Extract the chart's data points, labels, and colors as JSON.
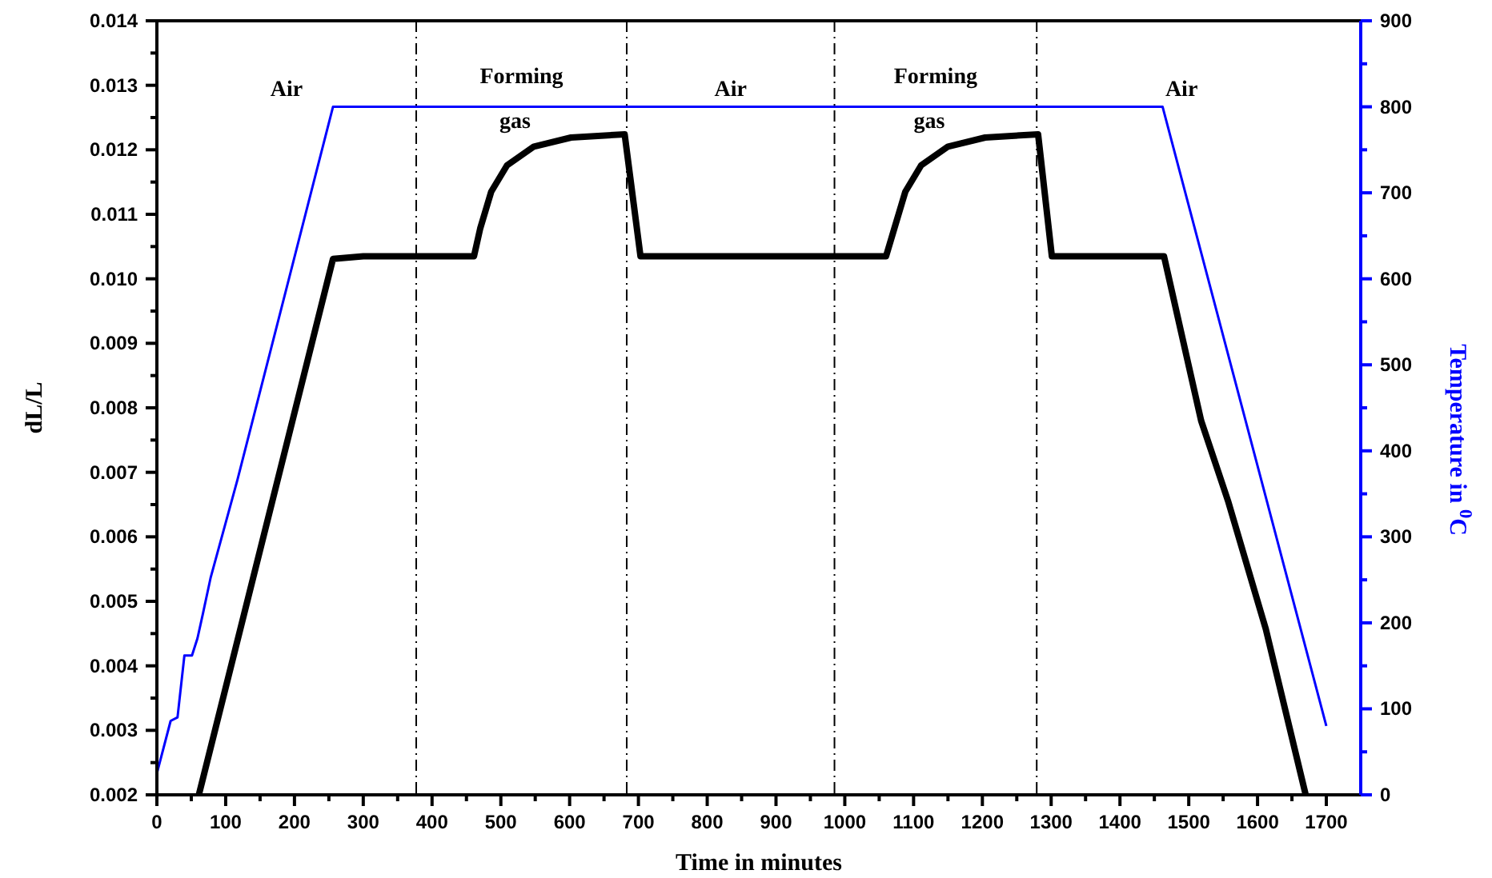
{
  "chart_data": {
    "type": "line",
    "xlabel": "Time in minutes",
    "ylabel": "dL/L",
    "y2label": "Temperature in $^{0}$C",
    "xlim": [
      0,
      1750
    ],
    "xticks": [
      0,
      {
        "value": 50,
        "label": null
      },
      100,
      {
        "value": 150,
        "label": null
      },
      200,
      {
        "value": 250,
        "label": null
      },
      300,
      {
        "value": 350,
        "label": null
      },
      400,
      {
        "value": 450,
        "label": null
      },
      500,
      {
        "value": 550,
        "label": null
      },
      600,
      {
        "value": 650,
        "label": null
      },
      700,
      {
        "value": 750,
        "label": null
      },
      800,
      {
        "value": 850,
        "label": null
      },
      900,
      {
        "value": 950,
        "label": null
      },
      1000,
      {
        "value": 1050,
        "label": null
      },
      1100,
      {
        "value": 1150,
        "label": null
      },
      1200,
      {
        "value": 1250,
        "label": null
      },
      1300,
      {
        "value": 1350,
        "label": null
      },
      1400,
      {
        "value": 1450,
        "label": null
      },
      1500,
      {
        "value": 1550,
        "label": null
      },
      1600,
      {
        "value": 1650,
        "label": null
      },
      1700
    ],
    "ylim": [
      0.002,
      0.014
    ],
    "yticks": [
      0.002,
      {
        "value": 0.0025,
        "label": null
      },
      0.003,
      {
        "value": 0.0035,
        "label": null
      },
      0.004,
      {
        "value": 0.0045,
        "label": null
      },
      0.005,
      {
        "value": 0.0055,
        "label": null
      },
      0.006,
      {
        "value": 0.0065,
        "label": null
      },
      0.007,
      {
        "value": 0.0075,
        "label": null
      },
      0.008,
      {
        "value": 0.0085,
        "label": null
      },
      0.009,
      {
        "value": 0.0095,
        "label": null
      },
      {
        "value": 0.01,
        "label": "0.010"
      },
      {
        "value": 0.0105,
        "label": null
      },
      0.011,
      {
        "value": 0.0115,
        "label": null
      },
      0.012,
      {
        "value": 0.0125,
        "label": null
      },
      0.013,
      {
        "value": 0.0135,
        "label": null
      },
      0.014
    ],
    "y2lim": [
      0,
      900
    ],
    "y2ticks": [
      0,
      {
        "value": 50,
        "label": null
      },
      100,
      {
        "value": 150,
        "label": null
      },
      200,
      {
        "value": 250,
        "label": null
      },
      300,
      {
        "value": 350,
        "label": null
      },
      400,
      {
        "value": 450,
        "label": null
      },
      500,
      {
        "value": 550,
        "label": null
      },
      600,
      {
        "value": 650,
        "label": null
      },
      700,
      {
        "value": 750,
        "label": null
      },
      800,
      {
        "value": 850,
        "label": null
      },
      900
    ],
    "series": [
      {
        "color": "#000000",
        "x": [
          61,
          256,
          300,
          461,
          470,
          486,
          509,
          548,
          602,
          680,
          703,
          900,
          1060,
          1072,
          1088,
          1111,
          1150,
          1204,
          1281,
          1301,
          1464,
          1518,
          1557,
          1612,
          1670
        ],
        "values": [
          0.002,
          0.01031,
          0.01035,
          0.01035,
          0.01078,
          0.01135,
          0.01176,
          0.01205,
          0.01219,
          0.01224,
          0.01035,
          0.01035,
          0.01035,
          0.01078,
          0.01135,
          0.01176,
          0.01205,
          0.01219,
          0.01224,
          0.01035,
          0.01035,
          0.0078,
          0.00656,
          0.00457,
          0.002
        ]
      },
      {
        "color": "#0000ff",
        "axis": "y2",
        "x": [
          0,
          20,
          30,
          40,
          51,
          59,
          67,
          78,
          117,
          256,
          1462,
          1700
        ],
        "values": [
          25,
          86,
          90,
          162,
          162,
          182,
          211,
          252,
          366,
          800,
          800,
          80
        ]
      }
    ],
    "ref_lines": [
      {
        "axis": "x",
        "value": 377,
        "line_style": "dashed",
        "color": "#000000"
      },
      {
        "axis": "x",
        "value": 683,
        "line_style": "dashed",
        "color": "#000000"
      },
      {
        "axis": "x",
        "value": 985,
        "line_style": "dashed",
        "color": "#000000"
      },
      {
        "axis": "x",
        "value": 1279,
        "line_style": "dashed",
        "color": "#000000"
      }
    ],
    "annotations": [
      "Air",
      "Forming gas",
      "Air",
      "Forming gas",
      "Air"
    ],
    "grid": false,
    "marker": "none",
    "line_style": "solid"
  }
}
